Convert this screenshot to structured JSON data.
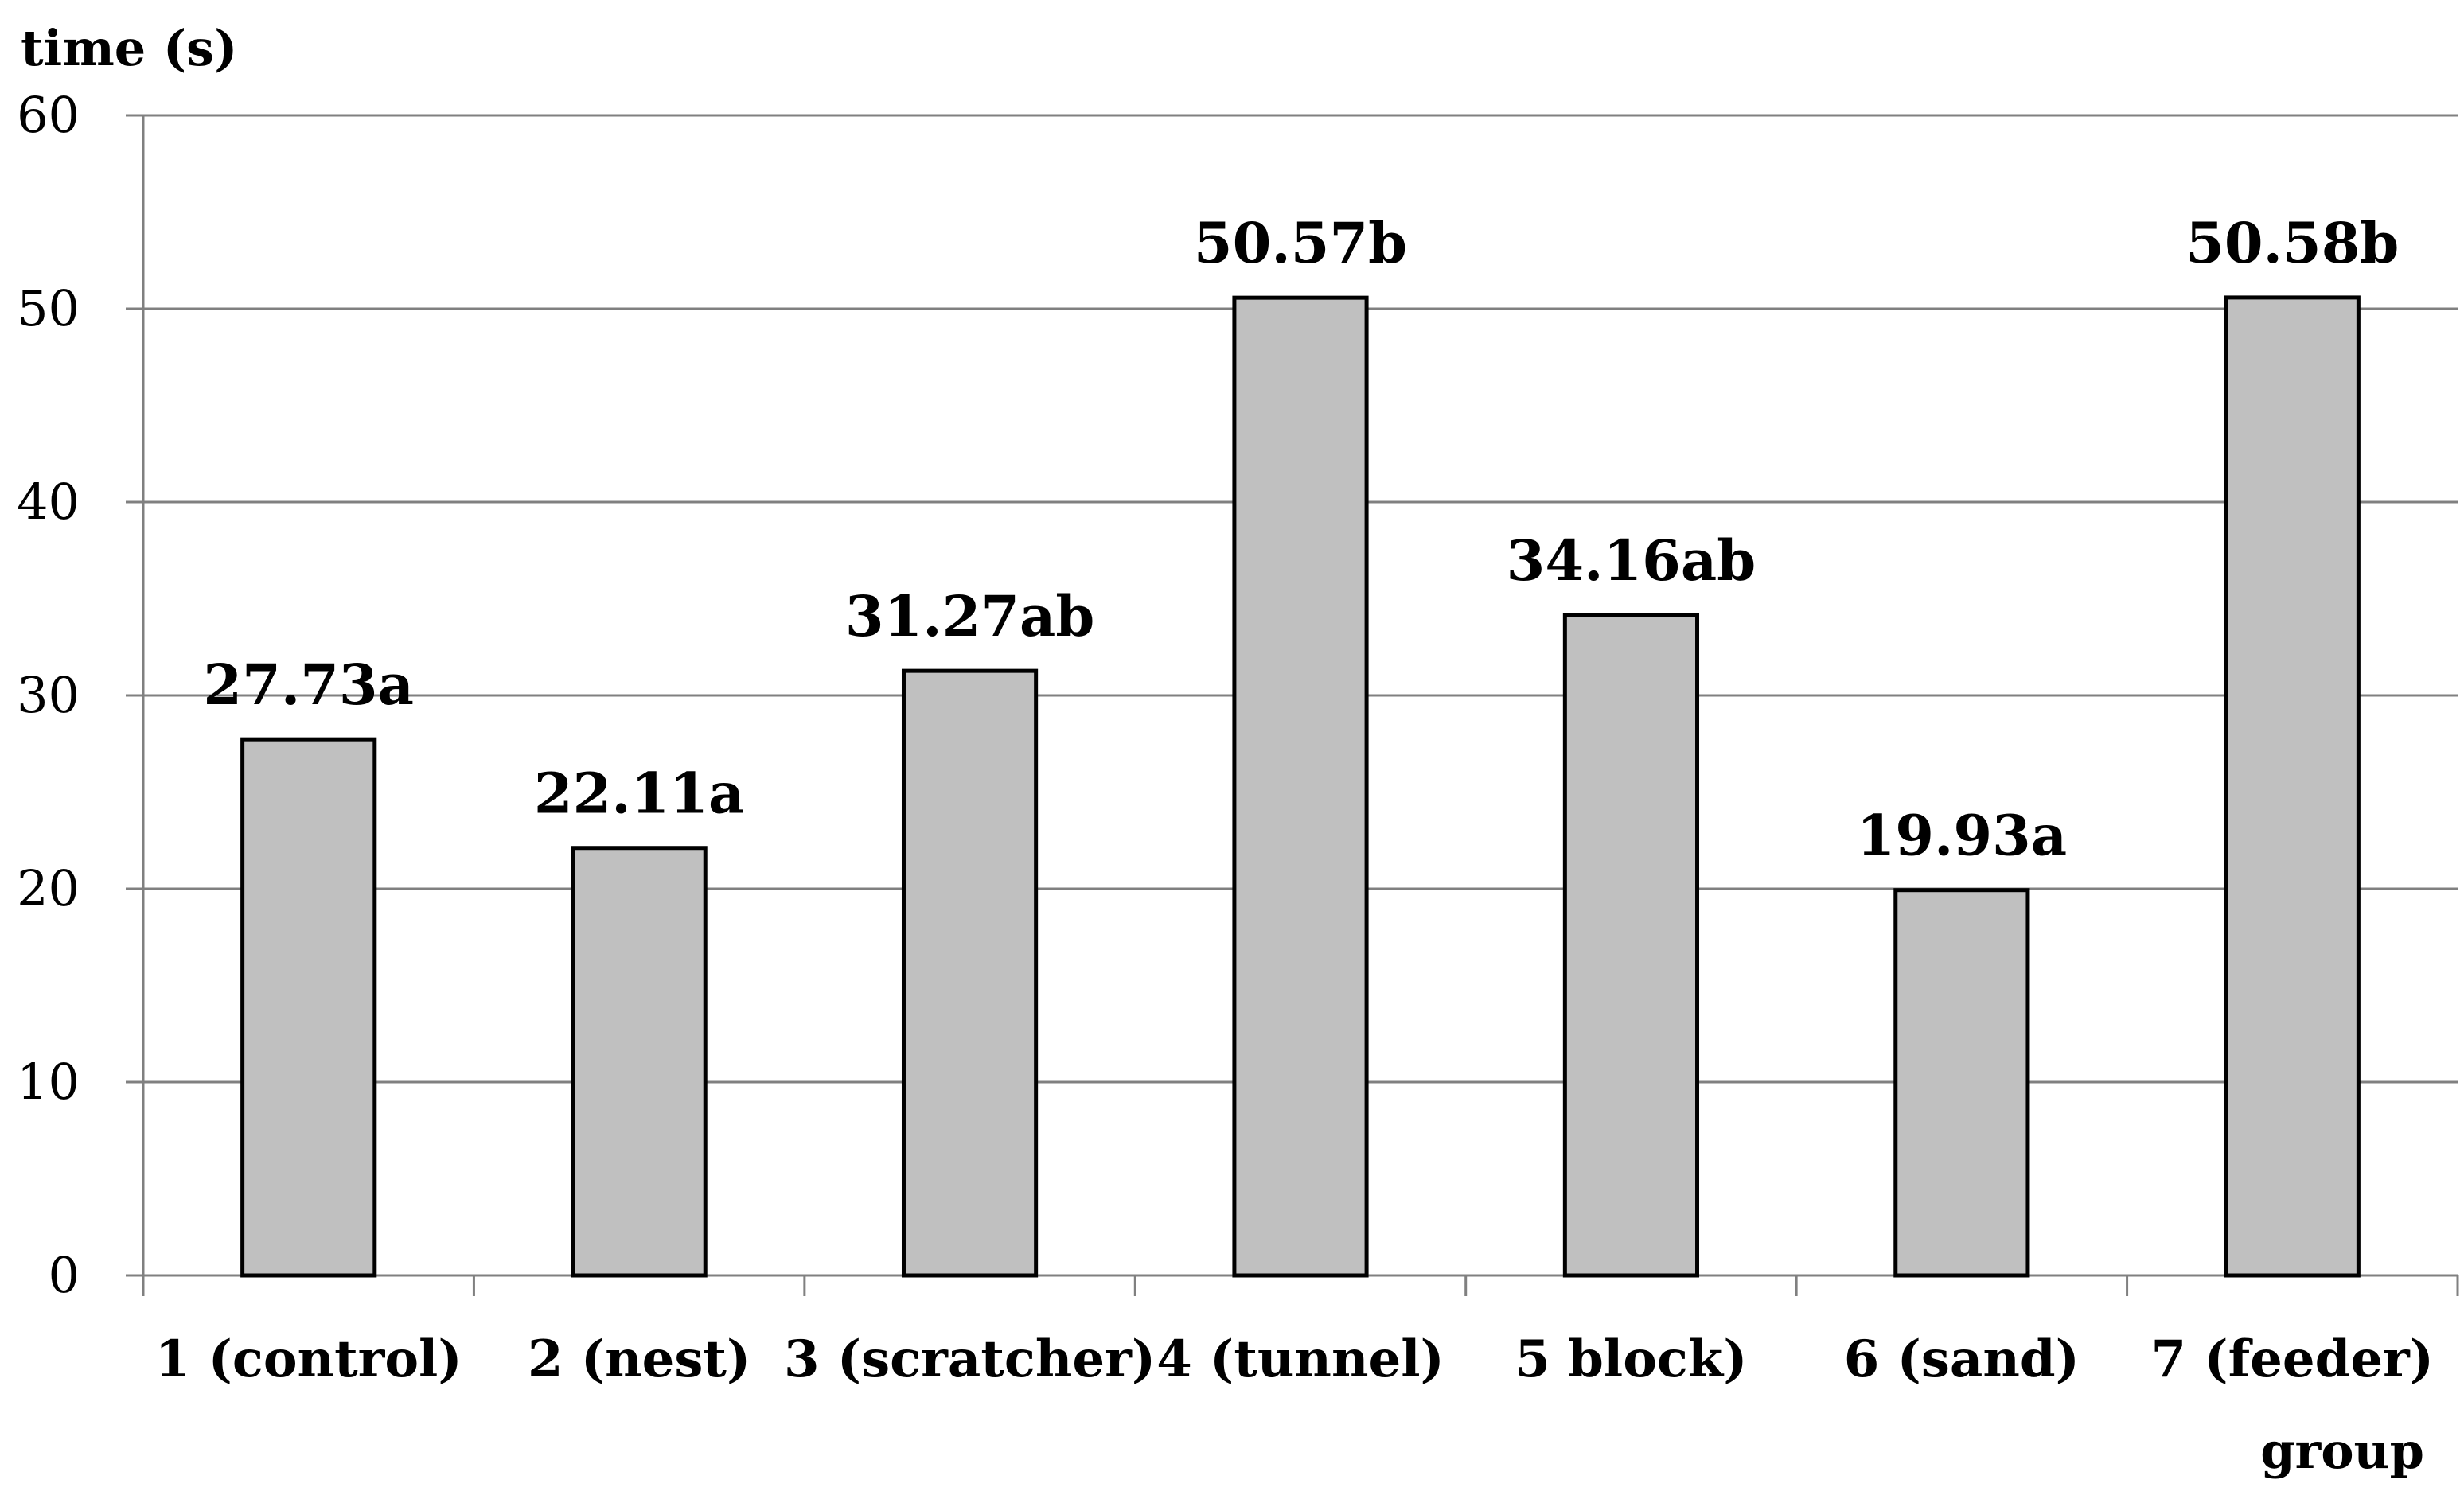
{
  "chart_data": {
    "type": "bar",
    "ylabel": "time (s)",
    "xlabel": "group",
    "categories": [
      "1 (control)",
      "2 (nest)",
      "3 (scratcher)",
      "4 (tunnel)",
      "5 block)",
      "6 (sand)",
      "7 (feeder)"
    ],
    "values": [
      27.73,
      22.11,
      31.27,
      50.57,
      34.16,
      19.93,
      50.58
    ],
    "data_labels": [
      "27.73a",
      "22.11a",
      "31.27ab",
      "50.57b",
      "34.16ab",
      "19.93a",
      "50.58b"
    ],
    "ylim": [
      0,
      60
    ],
    "yticks": [
      0,
      10,
      20,
      30,
      40,
      50,
      60
    ],
    "ytick_labels": [
      "0",
      "10",
      "20",
      "30",
      "40",
      "50",
      "60"
    ],
    "grid": true,
    "legend": "none",
    "colors": {
      "bar_fill": "#c0c0c0",
      "bar_stroke": "#000000",
      "grid": "#808080"
    }
  }
}
